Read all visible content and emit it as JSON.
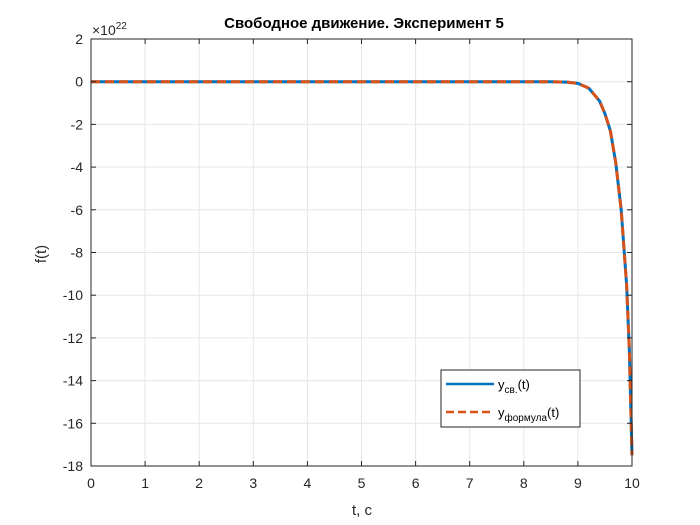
{
  "chart_data": {
    "type": "line",
    "title": "Свободное движение. Эксперимент 5",
    "xlabel": "t, c",
    "ylabel": "f(t)",
    "xlim": [
      0,
      10
    ],
    "ylim": [
      -18,
      2
    ],
    "y_multiplier": {
      "base": "×10",
      "exponent": "22"
    },
    "xticks": [
      "0",
      "1",
      "2",
      "3",
      "4",
      "5",
      "6",
      "7",
      "8",
      "9",
      "10"
    ],
    "yticks": [
      "2",
      "0",
      "-2",
      "-4",
      "-6",
      "-8",
      "-10",
      "-12",
      "-14",
      "-16",
      "-18"
    ],
    "grid": true,
    "legend_position": "lower-right",
    "series": [
      {
        "name": "y",
        "subscript": "св.",
        "suffix": "(t)",
        "color": "#0072BD",
        "style": "solid",
        "x": [
          0,
          1,
          2,
          3,
          4,
          5,
          6,
          7,
          8,
          8.5,
          8.8,
          9.0,
          9.2,
          9.4,
          9.5,
          9.6,
          9.7,
          9.8,
          9.9,
          9.95,
          10.0
        ],
        "y": [
          0,
          0,
          0,
          0,
          0,
          0,
          0,
          0,
          0,
          -0.003,
          -0.02,
          -0.08,
          -0.3,
          -0.9,
          -1.5,
          -2.3,
          -3.8,
          -6.0,
          -9.5,
          -12.5,
          -17.5
        ]
      },
      {
        "name": "y",
        "subscript": "формула",
        "suffix": "(t)",
        "color": "#D95319",
        "style": "dashed",
        "x": [
          0,
          1,
          2,
          3,
          4,
          5,
          6,
          7,
          8,
          8.5,
          8.8,
          9.0,
          9.2,
          9.4,
          9.5,
          9.6,
          9.7,
          9.8,
          9.9,
          9.95,
          10.0
        ],
        "y": [
          0,
          0,
          0,
          0,
          0,
          0,
          0,
          0,
          0,
          -0.003,
          -0.02,
          -0.08,
          -0.3,
          -0.9,
          -1.5,
          -2.3,
          -3.8,
          -6.0,
          -9.5,
          -12.5,
          -17.5
        ]
      }
    ]
  }
}
